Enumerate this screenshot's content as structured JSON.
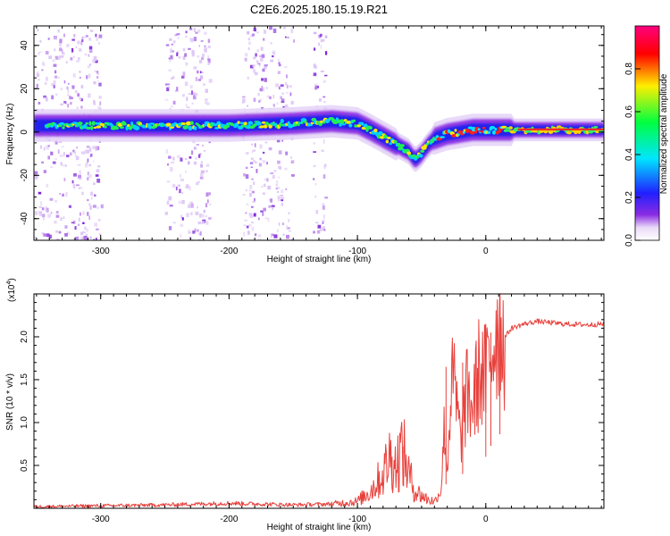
{
  "title": "C2E6.2025.180.15.19.R21",
  "chart_data": [
    {
      "type": "heatmap",
      "title": "",
      "xlabel": "Height of straight line (km)",
      "ylabel": "Frequency (Hz)",
      "xlim": [
        -352,
        92
      ],
      "ylim": [
        -50,
        49
      ],
      "xticks": [
        -300,
        -200,
        -100,
        0
      ],
      "yticks": [
        -40,
        -20,
        0,
        20,
        40
      ],
      "colorbar": {
        "label": "Normalized spectral amplitude",
        "range": [
          0,
          1
        ],
        "ticks": [
          "0.0",
          "0.2",
          "0.4",
          "0.6",
          "0.8"
        ],
        "tick_values": [
          0.0,
          0.2,
          0.4,
          0.6,
          0.8
        ],
        "colormap": "rainbow (white-violet-blue-cyan-green-yellow-red-magenta)"
      },
      "ridge": {
        "x": [
          -350,
          -300,
          -250,
          -200,
          -150,
          -120,
          -100,
          -90,
          -75,
          -60,
          -55,
          -50,
          -45,
          -40,
          -30,
          -20,
          -10,
          0,
          20,
          50,
          92
        ],
        "y": [
          3,
          3,
          3,
          3,
          4,
          5,
          4,
          1,
          -4,
          -9,
          -13,
          -10,
          -6,
          -3,
          -1,
          0,
          1,
          1,
          1,
          1,
          1
        ]
      },
      "noise_bands": [
        [
          -352,
          -300
        ],
        [
          -250,
          -215
        ],
        [
          -190,
          -150
        ],
        [
          -135,
          -125
        ]
      ],
      "grid": false,
      "colors": {
        "ridge_peak": "#ff0000",
        "noise": "#8a2be2"
      }
    },
    {
      "type": "line",
      "title": "",
      "xlabel": "Height of straight line (km)",
      "ylabel": "SNR (10 * v/v)",
      "y_multiplier": "(x10^4)",
      "xlim": [
        -352,
        92
      ],
      "ylim": [
        0,
        2.5
      ],
      "xticks": [
        -300,
        -200,
        -100,
        0
      ],
      "yticks": [
        0.5,
        1.0,
        1.5,
        2.0
      ],
      "ytick_labels": [
        "0.5",
        "1.0",
        "1.5",
        "2.0"
      ],
      "grid": false,
      "series": [
        {
          "color": "#e8413c",
          "x": [
            -350,
            -300,
            -250,
            -200,
            -150,
            -120,
            -100,
            -90,
            -80,
            -75,
            -70,
            -65,
            -60,
            -55,
            -50,
            -45,
            -40,
            -35,
            -32,
            -30,
            -28,
            -25,
            -20,
            -15,
            -10,
            -5,
            0,
            5,
            10,
            15,
            20,
            30,
            40,
            60,
            80,
            92
          ],
          "y": [
            0.02,
            0.03,
            0.04,
            0.06,
            0.04,
            0.05,
            0.08,
            0.2,
            0.4,
            0.6,
            0.5,
            0.7,
            0.4,
            0.2,
            0.15,
            0.1,
            0.08,
            0.2,
            1.0,
            0.4,
            1.2,
            1.5,
            0.8,
            1.3,
            1.2,
            1.6,
            1.5,
            1.9,
            2.2,
            2.0,
            2.1,
            2.15,
            2.18,
            2.15,
            2.14,
            2.15
          ]
        }
      ]
    }
  ]
}
